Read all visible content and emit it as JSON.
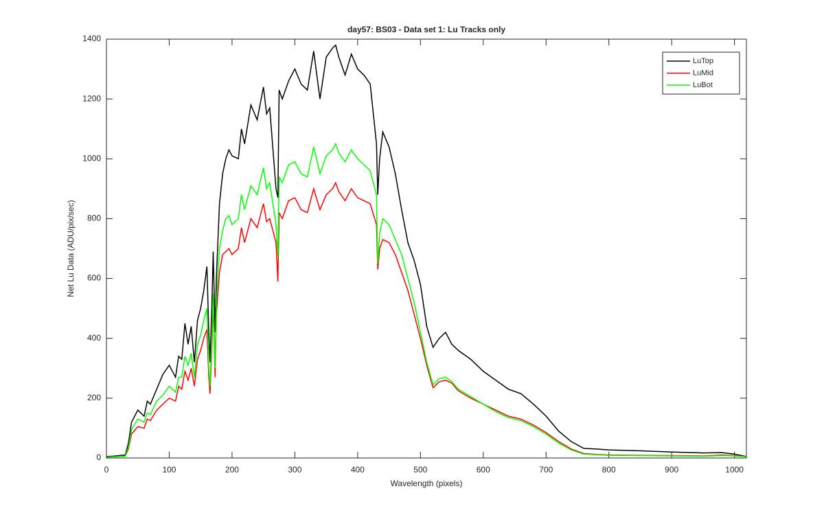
{
  "chart_data": {
    "type": "line",
    "title": "day57: BS03 - Data set 1: Lu Tracks only",
    "x_label": "Wavelength (pixels)",
    "y_label": "Net Lu Data (ADU/pix/sec)",
    "x": [
      0,
      10,
      20,
      30,
      35,
      40,
      50,
      60,
      65,
      70,
      80,
      90,
      100,
      110,
      115,
      120,
      125,
      130,
      135,
      140,
      145,
      150,
      155,
      160,
      163,
      165,
      168,
      170,
      173,
      175,
      180,
      185,
      190,
      195,
      200,
      210,
      215,
      220,
      230,
      240,
      250,
      255,
      260,
      270,
      273,
      275,
      280,
      290,
      300,
      310,
      320,
      330,
      340,
      350,
      360,
      365,
      370,
      380,
      390,
      400,
      410,
      420,
      430,
      432,
      435,
      440,
      450,
      460,
      470,
      480,
      490,
      500,
      510,
      520,
      530,
      540,
      550,
      560,
      580,
      600,
      620,
      640,
      660,
      680,
      700,
      720,
      740,
      760,
      780,
      800,
      850,
      900,
      950,
      980,
      1000,
      1019
    ],
    "series": [
      {
        "name": "LuTop",
        "color": "#000000",
        "values": [
          5,
          6,
          8,
          10,
          50,
          120,
          160,
          140,
          190,
          180,
          230,
          280,
          310,
          270,
          340,
          330,
          450,
          380,
          440,
          320,
          460,
          500,
          560,
          640,
          420,
          320,
          520,
          690,
          420,
          600,
          850,
          950,
          1000,
          1030,
          1010,
          1000,
          1100,
          1050,
          1180,
          1130,
          1240,
          1150,
          1170,
          900,
          870,
          1230,
          1200,
          1260,
          1300,
          1250,
          1230,
          1360,
          1200,
          1340,
          1370,
          1380,
          1340,
          1280,
          1350,
          1300,
          1280,
          1250,
          1050,
          880,
          1000,
          1090,
          1040,
          950,
          830,
          720,
          660,
          580,
          440,
          370,
          400,
          420,
          380,
          360,
          330,
          290,
          260,
          230,
          215,
          180,
          140,
          90,
          55,
          32,
          30,
          27,
          24,
          20,
          17,
          18,
          13,
          5
        ]
      },
      {
        "name": "LuMid",
        "color": "#ff0000",
        "values": [
          3,
          4,
          5,
          6,
          30,
          80,
          105,
          100,
          130,
          125,
          160,
          180,
          200,
          190,
          240,
          230,
          290,
          260,
          300,
          240,
          330,
          360,
          400,
          430,
          270,
          215,
          380,
          520,
          270,
          480,
          620,
          680,
          690,
          700,
          680,
          700,
          770,
          720,
          800,
          770,
          850,
          790,
          800,
          720,
          590,
          820,
          800,
          860,
          870,
          830,
          820,
          900,
          830,
          880,
          900,
          920,
          890,
          860,
          900,
          870,
          860,
          850,
          780,
          630,
          700,
          730,
          720,
          680,
          620,
          560,
          480,
          400,
          310,
          235,
          255,
          260,
          250,
          225,
          200,
          180,
          160,
          140,
          130,
          110,
          85,
          55,
          30,
          15,
          12,
          10,
          9,
          8,
          7,
          10,
          8,
          4
        ]
      },
      {
        "name": "LuBot",
        "color": "#00ff00",
        "values": [
          3,
          4,
          5,
          6,
          35,
          95,
          130,
          120,
          150,
          145,
          190,
          210,
          240,
          220,
          270,
          270,
          340,
          310,
          350,
          270,
          380,
          410,
          460,
          500,
          300,
          240,
          420,
          550,
          300,
          520,
          700,
          760,
          800,
          810,
          780,
          800,
          880,
          830,
          910,
          880,
          970,
          900,
          920,
          780,
          670,
          940,
          920,
          980,
          990,
          950,
          940,
          1040,
          950,
          1010,
          1030,
          1050,
          1020,
          990,
          1030,
          1000,
          980,
          960,
          880,
          650,
          750,
          800,
          780,
          730,
          680,
          600,
          520,
          420,
          320,
          245,
          265,
          270,
          255,
          230,
          205,
          180,
          155,
          135,
          125,
          105,
          80,
          50,
          27,
          13,
          11,
          9,
          8,
          7,
          6,
          8,
          7,
          4
        ]
      }
    ],
    "xlim": [
      0,
      1019
    ],
    "xticks": [
      0,
      100,
      200,
      300,
      400,
      500,
      600,
      700,
      800,
      900,
      1000
    ],
    "ylim": [
      0,
      1400
    ],
    "yticks": [
      0,
      200,
      400,
      600,
      800,
      1000,
      1200,
      1400
    ],
    "legend": "top-right"
  }
}
